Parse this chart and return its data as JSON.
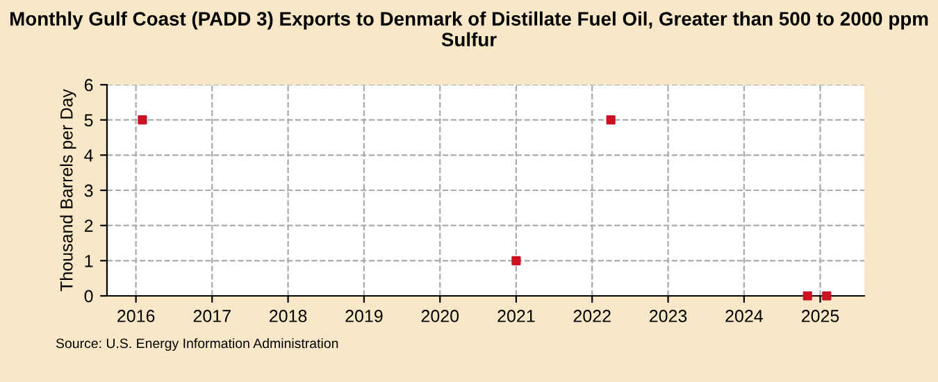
{
  "chart_data": {
    "type": "scatter",
    "title": "Monthly Gulf Coast (PADD 3) Exports to Denmark of Distillate Fuel Oil, Greater than 500 to 2000 ppm Sulfur",
    "ylabel": "Thousand Barrels per Day",
    "x": [
      "2016-02",
      "2021-01",
      "2022-04",
      "2024-11",
      "2025-02"
    ],
    "series": [
      {
        "color": "#cc1122",
        "values": [
          5,
          1,
          5,
          0,
          0
        ]
      }
    ],
    "xlim": [
      "2015-08-15",
      "2025-08-01"
    ],
    "xticks": [
      {
        "value": "2016-01",
        "label": "2016"
      },
      {
        "value": "2017-01",
        "label": "2017"
      },
      {
        "value": "2018-01",
        "label": "2018"
      },
      {
        "value": "2019-01",
        "label": "2019"
      },
      {
        "value": "2020-01",
        "label": "2020"
      },
      {
        "value": "2021-01",
        "label": "2021"
      },
      {
        "value": "2022-01",
        "label": "2022"
      },
      {
        "value": "2023-01",
        "label": "2023"
      },
      {
        "value": "2024-01",
        "label": "2024"
      },
      {
        "value": "2025-01",
        "label": "2025"
      }
    ],
    "ylim": [
      0,
      6
    ],
    "yticks": [
      0,
      1,
      2,
      3,
      4,
      5,
      6
    ],
    "grid": true,
    "marker": "square",
    "legend": false,
    "annotations": [
      "Source: U.S. Energy Information Administration"
    ]
  }
}
